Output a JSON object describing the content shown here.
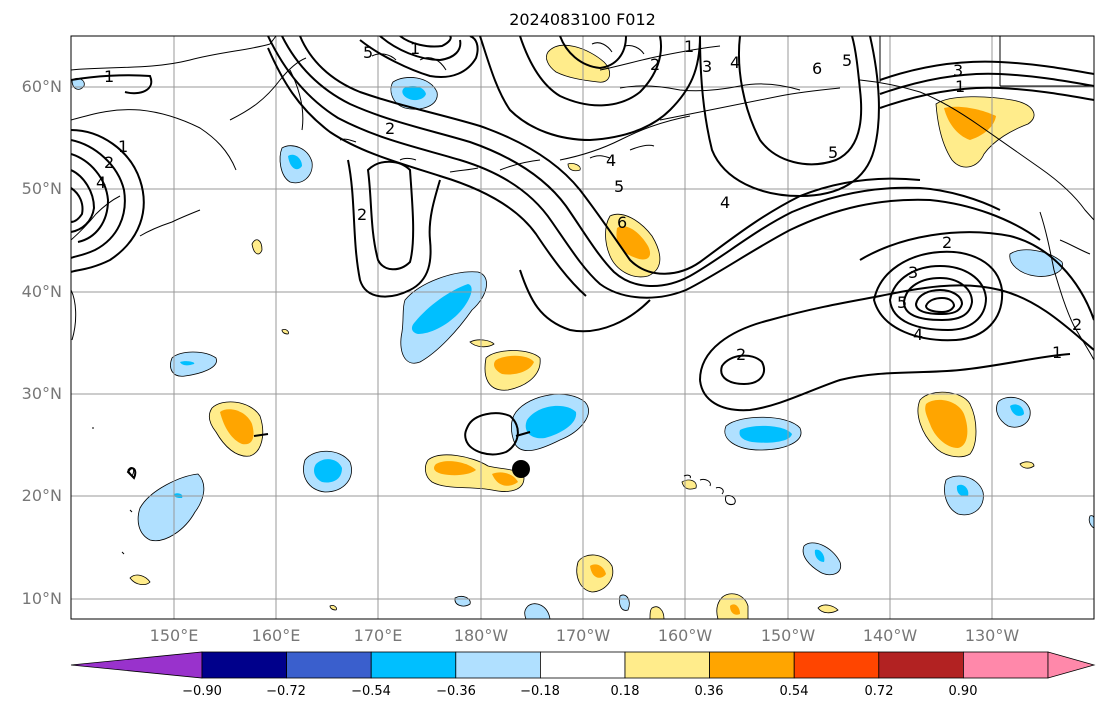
{
  "title": "2024083100 F012",
  "lat_labels": [
    "60°N",
    "50°N",
    "40°N",
    "30°N",
    "20°N",
    "10°N"
  ],
  "lon_labels": [
    "150°E",
    "160°E",
    "170°E",
    "180°W",
    "170°W",
    "160°W",
    "150°W",
    "140°W",
    "130°W"
  ],
  "colorbar": {
    "colors": [
      "#9932cc",
      "#00008b",
      "#3a5fcd",
      "#00bfff",
      "#b0e0ff",
      "#ffffff",
      "#ffec8b",
      "#ffa500",
      "#ff4500",
      "#b22222",
      "#ff88aa"
    ],
    "tick_labels": [
      "−0.90",
      "−0.72",
      "−0.54",
      "−0.36",
      "−0.18",
      "0.18",
      "0.36",
      "0.54",
      "0.72",
      "0.90"
    ]
  },
  "contour_labels": [
    "1",
    "2",
    "3",
    "4",
    "5",
    "6"
  ],
  "colors": {
    "negative_light": "#b0e0ff",
    "negative_mid": "#00bfff",
    "positive_light": "#ffec8b",
    "positive_mid": "#ffa500",
    "grid": "#999999"
  }
}
